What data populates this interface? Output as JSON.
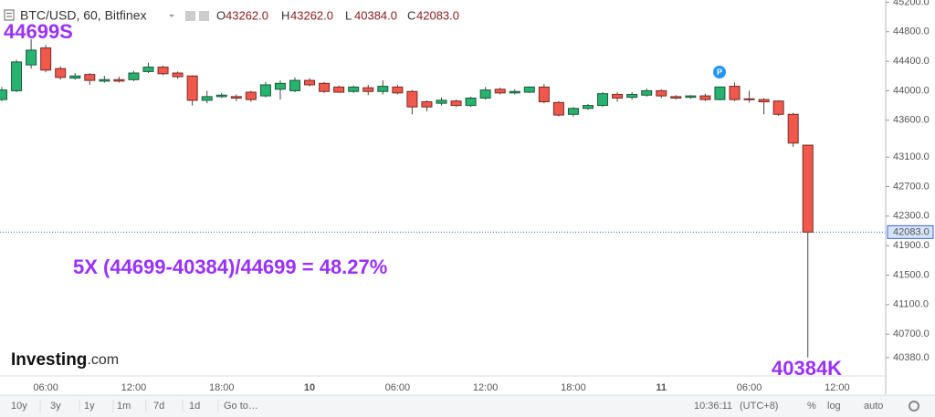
{
  "chart_data": {
    "type": "candlestick",
    "title": "BTC/USD, 60, Bitfinex",
    "header_ohlc": [
      {
        "key": "O",
        "value": "43262.0"
      },
      {
        "key": "H",
        "value": "43262.0"
      },
      {
        "key": "L",
        "value": "40384.0"
      },
      {
        "key": "C",
        "value": "42083.0"
      }
    ],
    "categories": [
      null,
      null,
      null,
      "06:00",
      null,
      null,
      null,
      null,
      null,
      "12:00",
      null,
      null,
      null,
      null,
      null,
      "18:00",
      null,
      null,
      null,
      null,
      null,
      "10",
      null,
      null,
      null,
      null,
      null,
      "06:00",
      null,
      null,
      null,
      null,
      null,
      "12:00",
      null,
      null,
      null,
      null,
      null,
      "18:00",
      null,
      null,
      null,
      null,
      null,
      "11",
      null,
      null,
      null,
      null,
      null,
      "06:00",
      null,
      null,
      null,
      null,
      null,
      "12:00"
    ],
    "open": [
      43880,
      44000,
      44350,
      44580,
      44300,
      44170,
      44220,
      44130,
      44150,
      44150,
      44260,
      44320,
      44240,
      44200,
      43870,
      43920,
      43920,
      43980,
      43930,
      44020,
      44000,
      44140,
      44100,
      44050,
      43990,
      44040,
      43990,
      44050,
      43990,
      43850,
      43830,
      43860,
      43800,
      43900,
      44020,
      43970,
      43980,
      44050,
      43840,
      43680,
      43760,
      43800,
      43950,
      43910,
      43940,
      44000,
      43920,
      43910,
      43930,
      43880,
      44060,
      43890,
      43880,
      43860,
      43680,
      43262,
      null,
      null
    ],
    "high": [
      44050,
      44420,
      44699,
      44620,
      44330,
      44240,
      44240,
      44200,
      44190,
      44270,
      44380,
      44340,
      44260,
      44210,
      44000,
      43970,
      43950,
      44000,
      44120,
      44140,
      44180,
      44170,
      44120,
      44070,
      44070,
      44080,
      44140,
      44080,
      44010,
      43870,
      43910,
      43880,
      43920,
      44050,
      44040,
      44020,
      44060,
      44090,
      43860,
      43780,
      43820,
      43980,
      43980,
      43980,
      44030,
      44020,
      43940,
      43940,
      43960,
      44060,
      44110,
      44000,
      43900,
      43870,
      43700,
      43262,
      null,
      null
    ],
    "low": [
      43860,
      43980,
      44300,
      44250,
      44150,
      44150,
      44080,
      44110,
      44110,
      44130,
      44240,
      44210,
      44160,
      43800,
      43830,
      43900,
      43860,
      43850,
      43910,
      43880,
      43980,
      44060,
      43970,
      43970,
      43970,
      43940,
      43950,
      43950,
      43680,
      43720,
      43800,
      43780,
      43780,
      43880,
      43950,
      43950,
      43970,
      43830,
      43650,
      43650,
      43740,
      43780,
      43850,
      43880,
      43920,
      43900,
      43880,
      43890,
      43860,
      43870,
      43860,
      43840,
      43680,
      43660,
      43240,
      40384,
      null,
      null
    ],
    "close": [
      44010,
      44390,
      44550,
      44280,
      44180,
      44200,
      44140,
      44150,
      44130,
      44240,
      44320,
      44230,
      44190,
      43870,
      43920,
      43940,
      43900,
      43880,
      44080,
      44100,
      44140,
      44080,
      43990,
      43980,
      44050,
      43990,
      44060,
      43970,
      43780,
      43780,
      43870,
      43800,
      43900,
      44010,
      43970,
      43990,
      44050,
      43850,
      43670,
      43760,
      43800,
      43960,
      43900,
      43950,
      44000,
      43930,
      43900,
      43930,
      43880,
      44050,
      43880,
      43880,
      43850,
      43680,
      43290,
      42083,
      null,
      null
    ],
    "up_color": "#26b36f",
    "down_color": "#f0584c",
    "ylim": [
      39910,
      45230
    ],
    "yticks": [
      {
        "value": 45200,
        "label": "45200.0"
      },
      {
        "value": 44800,
        "label": "44800.0"
      },
      {
        "value": 44400,
        "label": "44400.0"
      },
      {
        "value": 44000,
        "label": "44000.0"
      },
      {
        "value": 43600,
        "label": "43600.0"
      },
      {
        "value": 43100,
        "label": "43100.0"
      },
      {
        "value": 42700,
        "label": "42700.0"
      },
      {
        "value": 42300,
        "label": "42300.0"
      },
      {
        "value": 41900,
        "label": "41900.0"
      },
      {
        "value": 41500,
        "label": "41500.0"
      },
      {
        "value": 41100,
        "label": "41100.0"
      },
      {
        "value": 40700,
        "label": "40700.0"
      },
      {
        "value": 40380,
        "label": "40380.0"
      }
    ],
    "last_price": {
      "value": 42083,
      "label": "42083.0"
    },
    "annotations": [
      "44699S",
      "5X (44699-40384)/44699 = 48.27%",
      "40384K"
    ],
    "marker": "P",
    "grid": false
  },
  "logo": {
    "brand": "Investing",
    "suffix": ".com"
  },
  "toolbar": {
    "ranges": [
      "10y",
      "3y",
      "1y",
      "1m",
      "7d",
      "1d"
    ],
    "goto": "Go to…",
    "time": "10:36:11",
    "timezone": "(UTC+8)",
    "scale_options": [
      "%",
      "log",
      "auto"
    ]
  }
}
